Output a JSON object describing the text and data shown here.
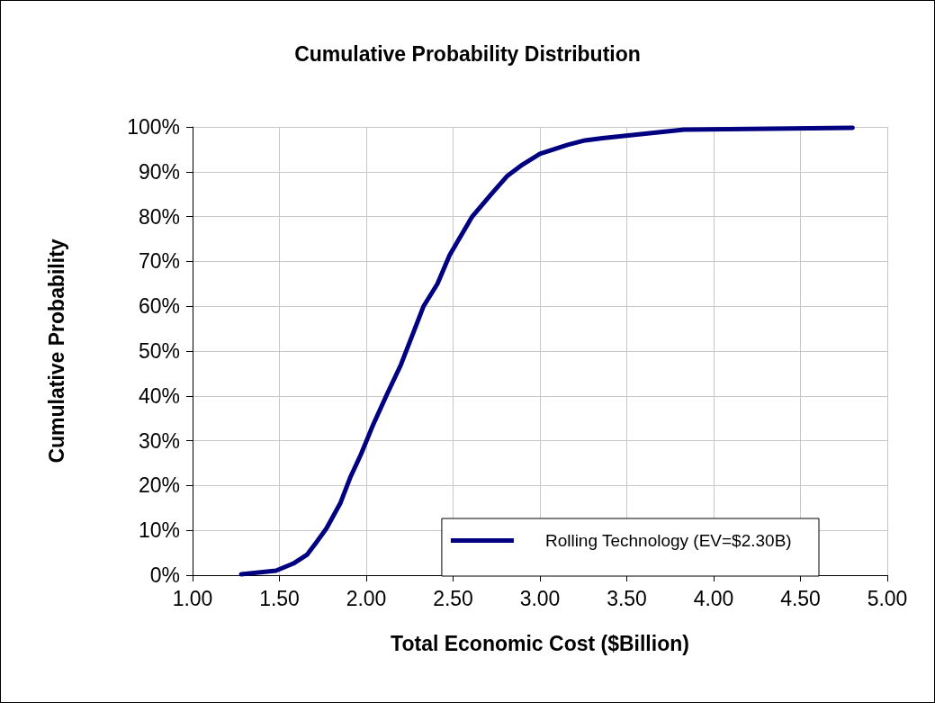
{
  "chart_data": {
    "type": "line",
    "title": "Cumulative Probability Distribution",
    "xlabel": "Total Economic Cost ($Billion)",
    "ylabel": "Cumulative Probability",
    "x": [
      1.28,
      1.48,
      1.58,
      1.66,
      1.71,
      1.77,
      1.85,
      1.91,
      1.97,
      2.04,
      2.12,
      2.2,
      2.29,
      2.33,
      2.41,
      2.48,
      2.61,
      2.72,
      2.81,
      2.9,
      3.0,
      3.16,
      3.26,
      3.36,
      3.83,
      4.8
    ],
    "series": [
      {
        "name": "Rolling Technology (EV=$2.30B)",
        "color": "#000080",
        "values": [
          0.2,
          1,
          2.6,
          4.6,
          7.2,
          10.4,
          16,
          22,
          27,
          33.6,
          40.4,
          47,
          56,
          60,
          65,
          71.4,
          80,
          85,
          89,
          91.6,
          94,
          96,
          97,
          97.5,
          99.4,
          99.8
        ]
      }
    ],
    "xlim": [
      1,
      5
    ],
    "xticks": [
      {
        "value": 1,
        "label": "1.00"
      },
      {
        "value": 1.5,
        "label": "1.50"
      },
      {
        "value": 2,
        "label": "2.00"
      },
      {
        "value": 2.5,
        "label": "2.50"
      },
      {
        "value": 3,
        "label": "3.00"
      },
      {
        "value": 3.5,
        "label": "3.50"
      },
      {
        "value": 4,
        "label": "4.00"
      },
      {
        "value": 4.5,
        "label": "4.50"
      },
      {
        "value": 5,
        "label": "5.00"
      }
    ],
    "ylim": [
      0,
      100
    ],
    "yticks": [
      {
        "value": 0,
        "label": "0%"
      },
      {
        "value": 10,
        "label": "10%"
      },
      {
        "value": 20,
        "label": "20%"
      },
      {
        "value": 30,
        "label": "30%"
      },
      {
        "value": 40,
        "label": "40%"
      },
      {
        "value": 50,
        "label": "50%"
      },
      {
        "value": 60,
        "label": "60%"
      },
      {
        "value": 70,
        "label": "70%"
      },
      {
        "value": 80,
        "label": "80%"
      },
      {
        "value": 90,
        "label": "90%"
      },
      {
        "value": 100,
        "label": "100%"
      }
    ],
    "grid": true,
    "legend": "bottom right",
    "marker": "none",
    "line_style": "solid"
  }
}
